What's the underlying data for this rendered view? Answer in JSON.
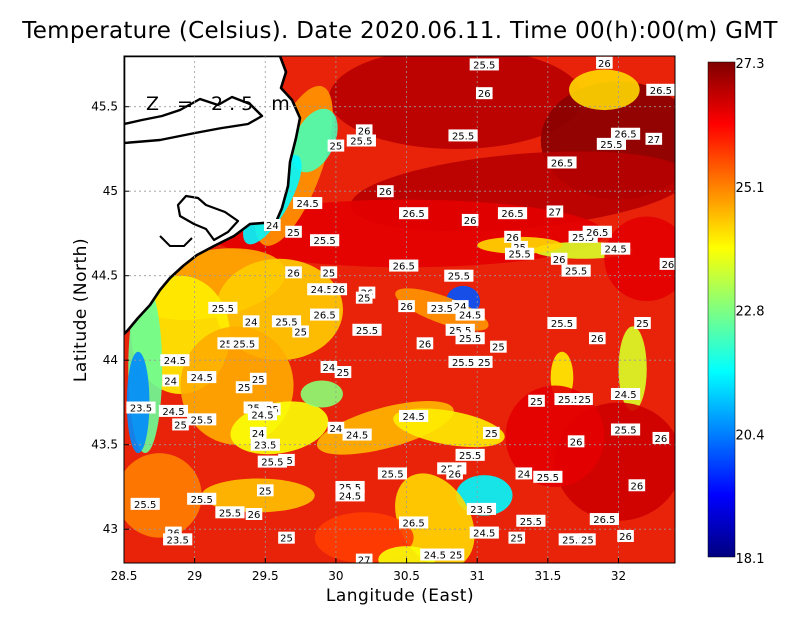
{
  "chart_data": {
    "type": "heatmap",
    "title": "Temperature (Celsius). Date 2020.06.11. Time 00(h):00(m)  GMT",
    "xlabel": "Langitude (East)",
    "ylabel": "Latitude (North)",
    "xlim": [
      28.5,
      32.4
    ],
    "ylim": [
      42.8,
      45.8
    ],
    "x_ticks": [
      "28.5",
      "29",
      "29.5",
      "30",
      "30.5",
      "31",
      "31.5",
      "32"
    ],
    "y_ticks": [
      "43",
      "43.5",
      "44",
      "44.5",
      "45",
      "45.5"
    ],
    "annotation": "Z = 2.5 m",
    "grid": true,
    "colorbar": {
      "min": 18.1,
      "max": 27.3,
      "tick_labels": [
        "27.3",
        "25.1",
        "22.8",
        "20.4",
        "18.1"
      ],
      "colors": [
        "#00007f",
        "#0000ff",
        "#0080ff",
        "#00ffff",
        "#80ff80",
        "#ffff00",
        "#ff8000",
        "#ff0000",
        "#7f0000"
      ]
    },
    "contour_labels": [
      {
        "lon": 31.05,
        "lat": 45.75,
        "text": "25.5"
      },
      {
        "lon": 31.9,
        "lat": 45.76,
        "text": "26"
      },
      {
        "lon": 32.3,
        "lat": 45.6,
        "text": "26.5"
      },
      {
        "lon": 31.05,
        "lat": 45.58,
        "text": "26"
      },
      {
        "lon": 30.2,
        "lat": 45.36,
        "text": "26"
      },
      {
        "lon": 30.18,
        "lat": 45.3,
        "text": "25.5"
      },
      {
        "lon": 30.0,
        "lat": 45.27,
        "text": "25"
      },
      {
        "lon": 30.9,
        "lat": 45.33,
        "text": "25.5"
      },
      {
        "lon": 32.05,
        "lat": 45.34,
        "text": "26.5"
      },
      {
        "lon": 31.95,
        "lat": 45.28,
        "text": "25.5"
      },
      {
        "lon": 32.25,
        "lat": 45.31,
        "text": "27"
      },
      {
        "lon": 31.6,
        "lat": 45.17,
        "text": "26.5"
      },
      {
        "lon": 30.35,
        "lat": 45.0,
        "text": "26"
      },
      {
        "lon": 29.8,
        "lat": 44.93,
        "text": "24.5"
      },
      {
        "lon": 30.55,
        "lat": 44.87,
        "text": "26.5"
      },
      {
        "lon": 30.95,
        "lat": 44.83,
        "text": "26"
      },
      {
        "lon": 31.25,
        "lat": 44.87,
        "text": "26.5"
      },
      {
        "lon": 31.55,
        "lat": 44.88,
        "text": "27"
      },
      {
        "lon": 29.55,
        "lat": 44.8,
        "text": "24"
      },
      {
        "lon": 29.7,
        "lat": 44.76,
        "text": "25"
      },
      {
        "lon": 29.92,
        "lat": 44.71,
        "text": "25.5"
      },
      {
        "lon": 31.25,
        "lat": 44.73,
        "text": "26"
      },
      {
        "lon": 31.75,
        "lat": 44.73,
        "text": "25.5"
      },
      {
        "lon": 31.85,
        "lat": 44.76,
        "text": "26.5"
      },
      {
        "lon": 31.3,
        "lat": 44.67,
        "text": "25"
      },
      {
        "lon": 31.3,
        "lat": 44.63,
        "text": "25.5"
      },
      {
        "lon": 31.98,
        "lat": 44.66,
        "text": "24.5"
      },
      {
        "lon": 31.58,
        "lat": 44.6,
        "text": "26"
      },
      {
        "lon": 31.7,
        "lat": 44.53,
        "text": "25.5"
      },
      {
        "lon": 32.35,
        "lat": 44.57,
        "text": "26"
      },
      {
        "lon": 30.48,
        "lat": 44.56,
        "text": "26.5"
      },
      {
        "lon": 29.7,
        "lat": 44.52,
        "text": "26"
      },
      {
        "lon": 29.95,
        "lat": 44.52,
        "text": "25"
      },
      {
        "lon": 30.87,
        "lat": 44.5,
        "text": "25.5"
      },
      {
        "lon": 29.9,
        "lat": 44.42,
        "text": "24.5"
      },
      {
        "lon": 30.02,
        "lat": 44.42,
        "text": "26"
      },
      {
        "lon": 30.22,
        "lat": 44.4,
        "text": "26"
      },
      {
        "lon": 30.2,
        "lat": 44.37,
        "text": "25"
      },
      {
        "lon": 30.5,
        "lat": 44.32,
        "text": "26"
      },
      {
        "lon": 30.75,
        "lat": 44.31,
        "text": "23.5"
      },
      {
        "lon": 30.88,
        "lat": 44.32,
        "text": "24"
      },
      {
        "lon": 30.95,
        "lat": 44.27,
        "text": "24.5"
      },
      {
        "lon": 29.2,
        "lat": 44.31,
        "text": "25.5"
      },
      {
        "lon": 29.4,
        "lat": 44.23,
        "text": "24"
      },
      {
        "lon": 29.65,
        "lat": 44.23,
        "text": "25.5"
      },
      {
        "lon": 29.92,
        "lat": 44.27,
        "text": "26.5"
      },
      {
        "lon": 30.22,
        "lat": 44.18,
        "text": "25.5"
      },
      {
        "lon": 30.88,
        "lat": 44.18,
        "text": "25.5"
      },
      {
        "lon": 30.95,
        "lat": 44.13,
        "text": "25.5"
      },
      {
        "lon": 31.6,
        "lat": 44.22,
        "text": "25.5"
      },
      {
        "lon": 32.17,
        "lat": 44.22,
        "text": "25"
      },
      {
        "lon": 31.85,
        "lat": 44.13,
        "text": "26"
      },
      {
        "lon": 29.75,
        "lat": 44.17,
        "text": "25"
      },
      {
        "lon": 29.22,
        "lat": 44.1,
        "text": "25"
      },
      {
        "lon": 29.35,
        "lat": 44.1,
        "text": "25.5"
      },
      {
        "lon": 30.63,
        "lat": 44.1,
        "text": "26"
      },
      {
        "lon": 28.86,
        "lat": 44.0,
        "text": "24.5"
      },
      {
        "lon": 30.9,
        "lat": 43.99,
        "text": "25.5"
      },
      {
        "lon": 31.05,
        "lat": 43.99,
        "text": "25"
      },
      {
        "lon": 31.15,
        "lat": 44.08,
        "text": "25"
      },
      {
        "lon": 29.95,
        "lat": 43.96,
        "text": "24"
      },
      {
        "lon": 30.05,
        "lat": 43.93,
        "text": "25"
      },
      {
        "lon": 28.83,
        "lat": 43.88,
        "text": "24"
      },
      {
        "lon": 29.05,
        "lat": 43.9,
        "text": "24.5"
      },
      {
        "lon": 29.45,
        "lat": 43.89,
        "text": "25"
      },
      {
        "lon": 29.35,
        "lat": 43.84,
        "text": "25"
      },
      {
        "lon": 32.05,
        "lat": 43.8,
        "text": "24.5"
      },
      {
        "lon": 28.62,
        "lat": 43.72,
        "text": "23.5"
      },
      {
        "lon": 28.85,
        "lat": 43.7,
        "text": "24.5"
      },
      {
        "lon": 28.9,
        "lat": 43.62,
        "text": "25"
      },
      {
        "lon": 29.05,
        "lat": 43.65,
        "text": "25.5"
      },
      {
        "lon": 29.45,
        "lat": 43.72,
        "text": "25.5"
      },
      {
        "lon": 29.55,
        "lat": 43.71,
        "text": "25"
      },
      {
        "lon": 29.48,
        "lat": 43.68,
        "text": "24.5"
      },
      {
        "lon": 30.55,
        "lat": 43.67,
        "text": "24.5"
      },
      {
        "lon": 31.42,
        "lat": 43.76,
        "text": "25"
      },
      {
        "lon": 31.65,
        "lat": 43.77,
        "text": "25.5"
      },
      {
        "lon": 31.76,
        "lat": 43.77,
        "text": "25"
      },
      {
        "lon": 30.0,
        "lat": 43.6,
        "text": "24"
      },
      {
        "lon": 30.15,
        "lat": 43.56,
        "text": "24.5"
      },
      {
        "lon": 29.45,
        "lat": 43.57,
        "text": "24"
      },
      {
        "lon": 29.5,
        "lat": 43.5,
        "text": "23.5"
      },
      {
        "lon": 31.1,
        "lat": 43.57,
        "text": "25"
      },
      {
        "lon": 32.05,
        "lat": 43.59,
        "text": "25.5"
      },
      {
        "lon": 32.3,
        "lat": 43.54,
        "text": "26"
      },
      {
        "lon": 31.7,
        "lat": 43.52,
        "text": "26"
      },
      {
        "lon": 30.95,
        "lat": 43.44,
        "text": "25.5"
      },
      {
        "lon": 29.65,
        "lat": 43.41,
        "text": "25"
      },
      {
        "lon": 29.55,
        "lat": 43.4,
        "text": "25.5"
      },
      {
        "lon": 30.82,
        "lat": 43.36,
        "text": "25.5"
      },
      {
        "lon": 30.84,
        "lat": 43.33,
        "text": "26"
      },
      {
        "lon": 30.4,
        "lat": 43.33,
        "text": "25.5"
      },
      {
        "lon": 31.33,
        "lat": 43.33,
        "text": "24"
      },
      {
        "lon": 31.5,
        "lat": 43.31,
        "text": "25.5"
      },
      {
        "lon": 30.1,
        "lat": 43.25,
        "text": "25.5"
      },
      {
        "lon": 30.1,
        "lat": 43.2,
        "text": "24.5"
      },
      {
        "lon": 29.5,
        "lat": 43.23,
        "text": "25"
      },
      {
        "lon": 29.05,
        "lat": 43.18,
        "text": "25.5"
      },
      {
        "lon": 28.65,
        "lat": 43.15,
        "text": "25.5"
      },
      {
        "lon": 29.25,
        "lat": 43.1,
        "text": "25.5"
      },
      {
        "lon": 29.42,
        "lat": 43.09,
        "text": "26"
      },
      {
        "lon": 32.13,
        "lat": 43.26,
        "text": "26"
      },
      {
        "lon": 31.03,
        "lat": 43.12,
        "text": "23.5"
      },
      {
        "lon": 30.55,
        "lat": 43.04,
        "text": "26.5"
      },
      {
        "lon": 31.38,
        "lat": 43.05,
        "text": "25.5"
      },
      {
        "lon": 31.9,
        "lat": 43.06,
        "text": "26.5"
      },
      {
        "lon": 28.85,
        "lat": 42.98,
        "text": "26"
      },
      {
        "lon": 28.88,
        "lat": 42.94,
        "text": "23.5"
      },
      {
        "lon": 29.65,
        "lat": 42.95,
        "text": "25"
      },
      {
        "lon": 31.05,
        "lat": 42.98,
        "text": "24.5"
      },
      {
        "lon": 31.28,
        "lat": 42.95,
        "text": "25"
      },
      {
        "lon": 31.68,
        "lat": 42.94,
        "text": "25.5"
      },
      {
        "lon": 31.78,
        "lat": 42.94,
        "text": "25"
      },
      {
        "lon": 32.05,
        "lat": 42.96,
        "text": "26"
      },
      {
        "lon": 30.7,
        "lat": 42.85,
        "text": "24.5"
      },
      {
        "lon": 30.85,
        "lat": 42.85,
        "text": "25"
      },
      {
        "lon": 30.2,
        "lat": 42.82,
        "text": "27"
      }
    ]
  }
}
